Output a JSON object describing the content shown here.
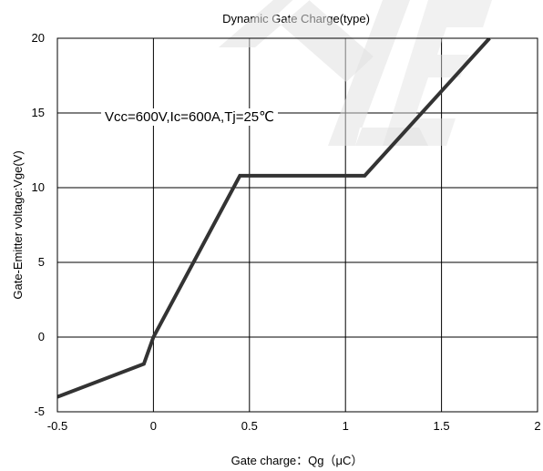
{
  "chart_data": {
    "type": "line",
    "title": "Dynamic Gate Charge(type)",
    "xlabel": "Gate charge：Qg（μC）",
    "ylabel": "Gate-Emitter voltage:Vge(V)",
    "xlim": [
      -0.5,
      2
    ],
    "ylim": [
      -5,
      20
    ],
    "xticks": [
      -0.5,
      0,
      0.5,
      1,
      1.5,
      2
    ],
    "xtick_labels": [
      "-0.5",
      "0",
      "0.5",
      "1",
      "1.5",
      "2"
    ],
    "yticks": [
      -5,
      0,
      5,
      10,
      15,
      20
    ],
    "ytick_labels": [
      "-5",
      "0",
      "5",
      "10",
      "15",
      "20"
    ],
    "grid": true,
    "annotation": "Vcc=600V,Ic=600A,Tj=25℃",
    "series": [
      {
        "color": "#333333",
        "x": [
          -0.5,
          -0.05,
          0.0,
          0.45,
          1.1,
          1.75
        ],
        "y": [
          -4.0,
          -1.8,
          0.0,
          10.8,
          10.8,
          20.0
        ]
      }
    ]
  }
}
